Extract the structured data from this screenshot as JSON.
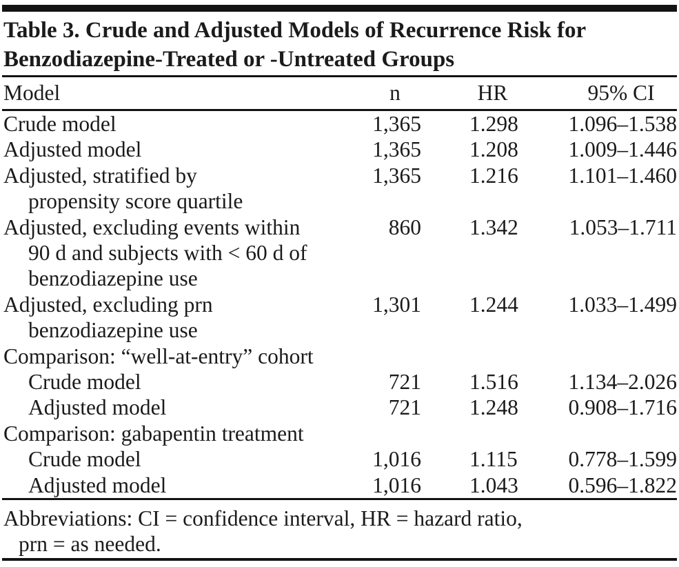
{
  "title": {
    "line1": "Table 3. Crude and Adjusted Models of Recurrence Risk for",
    "line2": "Benzodiazepine-Treated or -Untreated Groups"
  },
  "table": {
    "columns": [
      "Model",
      "n",
      "HR",
      "95% CI"
    ],
    "rows": [
      {
        "label_lines": [
          "Crude model"
        ],
        "indent": false,
        "section": false,
        "n": "1,365",
        "hr": "1.298",
        "ci": "1.096–1.538"
      },
      {
        "label_lines": [
          "Adjusted model"
        ],
        "indent": false,
        "section": false,
        "n": "1,365",
        "hr": "1.208",
        "ci": "1.009–1.446"
      },
      {
        "label_lines": [
          "Adjusted, stratified by",
          "propensity score quartile"
        ],
        "indent": false,
        "section": false,
        "n": "1,365",
        "hr": "1.216",
        "ci": "1.101–1.460"
      },
      {
        "label_lines": [
          "Adjusted, excluding events within",
          "90 d and subjects with < 60 d of",
          "benzodiazepine use"
        ],
        "indent": false,
        "section": false,
        "n": "860",
        "hr": "1.342",
        "ci": "1.053–1.711"
      },
      {
        "label_lines": [
          "Adjusted, excluding prn",
          "benzodiazepine use"
        ],
        "indent": false,
        "section": false,
        "n": "1,301",
        "hr": "1.244",
        "ci": "1.033–1.499"
      },
      {
        "label_lines": [
          "Comparison: “well-at-entry” cohort"
        ],
        "indent": false,
        "section": true,
        "n": "",
        "hr": "",
        "ci": ""
      },
      {
        "label_lines": [
          "Crude model"
        ],
        "indent": true,
        "section": false,
        "n": "721",
        "hr": "1.516",
        "ci": "1.134–2.026"
      },
      {
        "label_lines": [
          "Adjusted model"
        ],
        "indent": true,
        "section": false,
        "n": "721",
        "hr": "1.248",
        "ci": "0.908–1.716"
      },
      {
        "label_lines": [
          "Comparison: gabapentin treatment"
        ],
        "indent": false,
        "section": true,
        "n": "",
        "hr": "",
        "ci": ""
      },
      {
        "label_lines": [
          "Crude model"
        ],
        "indent": true,
        "section": false,
        "n": "1,016",
        "hr": "1.115",
        "ci": "0.778–1.599"
      },
      {
        "label_lines": [
          "Adjusted model"
        ],
        "indent": true,
        "section": false,
        "n": "1,016",
        "hr": "1.043",
        "ci": "0.596–1.822"
      }
    ]
  },
  "footnote": {
    "line1": "Abbreviations: CI = confidence interval, HR = hazard ratio,",
    "line2": "prn = as needed."
  }
}
